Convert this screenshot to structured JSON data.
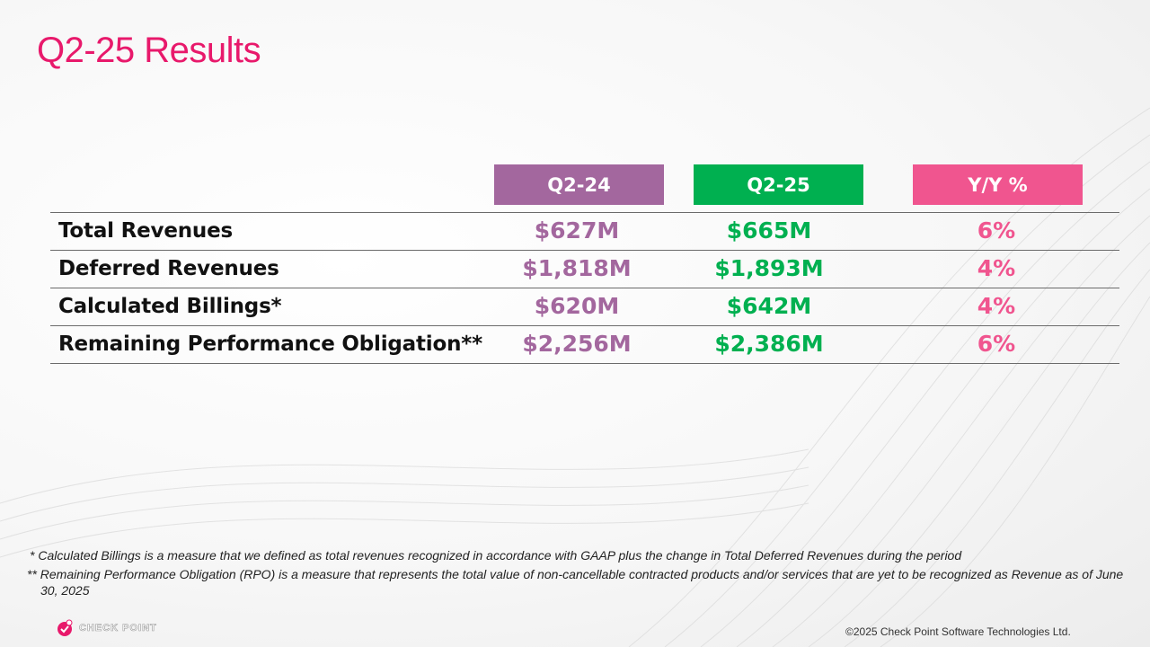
{
  "slide": {
    "title": "Q2-25 Results"
  },
  "table": {
    "columns": [
      {
        "label": "Q2-24",
        "color": "#a3679e"
      },
      {
        "label": "Q2-25",
        "color": "#00b050"
      },
      {
        "label": "Y/Y %",
        "color": "#f0558f"
      }
    ],
    "rows": [
      {
        "label": "Total Revenues",
        "q2_24": "$627M",
        "q2_25": "$665M",
        "yy": "6%"
      },
      {
        "label": "Deferred Revenues",
        "q2_24": "$1,818M",
        "q2_25": "$1,893M",
        "yy": "4%"
      },
      {
        "label": "Calculated Billings*",
        "q2_24": "$620M",
        "q2_25": "$642M",
        "yy": "4%"
      },
      {
        "label": "Remaining Performance Obligation**",
        "q2_24": "$2,256M",
        "q2_25": "$2,386M",
        "yy": "6%"
      }
    ]
  },
  "footnotes": {
    "billings": "* Calculated Billings is a measure that we defined as total revenues recognized in accordance with GAAP plus the change in Total Deferred Revenues during the period",
    "rpo": "** Remaining Performance Obligation (RPO) is a measure that represents the total value of non-cancellable contracted products and/or services that are yet to be recognized as Revenue as of June 30, 2025"
  },
  "footer": {
    "logo_text": "CHECK POINT",
    "copyright": "©2025 Check Point Software Technologies Ltd."
  },
  "colors": {
    "title": "#e8196b",
    "q2_24": "#a3679e",
    "q2_25": "#00b050",
    "yy": "#f0558f"
  }
}
